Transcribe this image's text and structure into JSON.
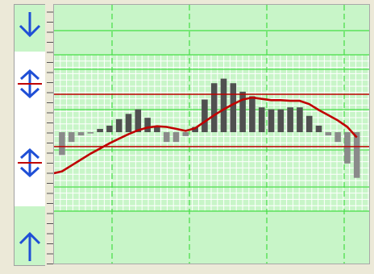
{
  "colors": {
    "panel_bg": "#ece9d8",
    "plot_bg": "#c8f5c8",
    "fine_grid": "#ffffff",
    "major_grid": "#44dd44",
    "bar_dark": "#505050",
    "bar_light": "#8a8a8a",
    "curve": "#c00000",
    "limit_line": "#c00000",
    "arrow": "#1f4fd6"
  },
  "icons": {
    "top_handle": "arrow-down-icon",
    "upper_handle": "double-arrow-vertical-icon",
    "lower_handle": "double-arrow-vertical-icon",
    "bottom_handle": "arrow-up-icon"
  },
  "chart_data": {
    "type": "bar",
    "grid": true,
    "ylim": [
      -12,
      12
    ],
    "x": [
      1,
      2,
      3,
      4,
      5,
      6,
      7,
      8,
      9,
      10,
      11,
      12,
      13,
      14,
      15,
      16,
      17,
      18,
      19,
      20,
      21,
      22,
      23,
      24,
      25,
      26,
      27,
      28,
      29,
      30,
      31,
      32
    ],
    "series": [
      {
        "values": [
          -3.5,
          -1.5,
          -0.5,
          -0.2,
          0.5,
          1,
          2,
          2.8,
          3.5,
          2.2,
          0.8,
          -1.5,
          -1.5,
          -0.6,
          0.8,
          5,
          7.5,
          8.2,
          7.5,
          6.2,
          5.5,
          3.8,
          3.5,
          3.5,
          3.8,
          3.8,
          2.5,
          1,
          -0.5,
          -1.5,
          -4.8,
          -7
        ]
      },
      {
        "values": [
          -6,
          -5.1,
          -4.2,
          -3.3,
          -2.5,
          -1.7,
          -1,
          -0.3,
          0.3,
          0.7,
          0.9,
          0.8,
          0.5,
          0.2,
          0.6,
          1.6,
          2.6,
          3.5,
          4.3,
          5,
          5.3,
          5.1,
          4.9,
          4.9,
          4.8,
          4.8,
          4.3,
          3.4,
          2.6,
          1.8,
          0.8,
          -0.8
        ]
      }
    ],
    "limits": [
      5.8,
      -2.2
    ]
  }
}
